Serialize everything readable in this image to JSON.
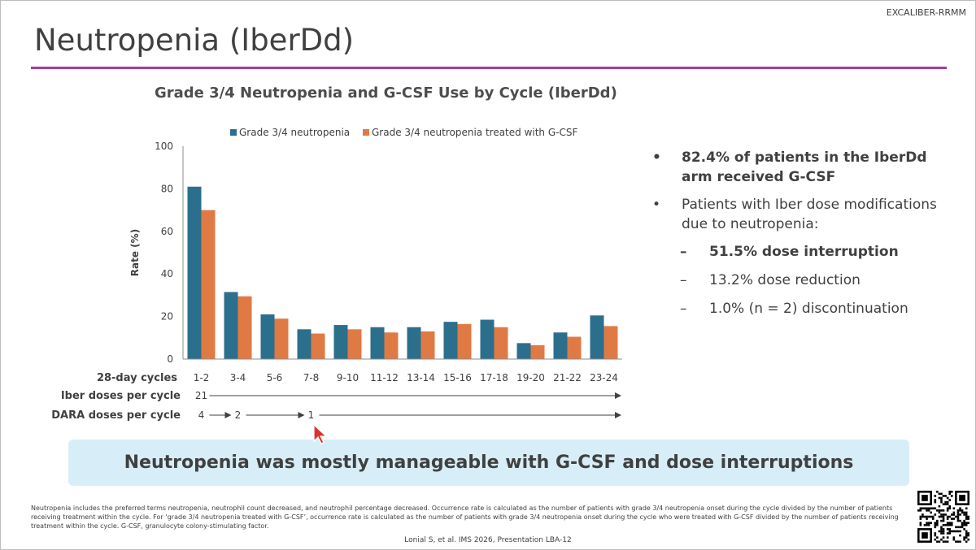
{
  "header": {
    "tag": "EXCALIBER-RRMM",
    "title": "Neutropenia (IberDd)"
  },
  "colors": {
    "accent_rule": "#a63c9a",
    "series1": "#2b6f8c",
    "series2": "#e07a45",
    "banner_bg": "#d7eef8"
  },
  "chart_data": {
    "type": "bar",
    "title": "Grade 3/4 Neutropenia and G-CSF Use by Cycle (IberDd)",
    "xlabel": "28-day cycles",
    "ylabel": "Rate (%)",
    "ylim": [
      0,
      100
    ],
    "yticks": [
      0,
      20,
      40,
      60,
      80,
      100
    ],
    "legend": "top",
    "categories": [
      "1-2",
      "3-4",
      "5-6",
      "7-8",
      "9-10",
      "11-12",
      "13-14",
      "15-16",
      "17-18",
      "19-20",
      "21-22",
      "23-24"
    ],
    "series": [
      {
        "name": "Grade 3/4 neutropenia",
        "values": [
          81,
          31.5,
          21,
          14,
          16,
          15,
          15,
          17.5,
          18.5,
          7.5,
          12.5,
          20.5
        ]
      },
      {
        "name": "Grade 3/4 neutropenia treated with G-CSF",
        "values": [
          70,
          29.5,
          19,
          12,
          14,
          12.5,
          13,
          16.5,
          15,
          6.5,
          10.5,
          15.5
        ]
      }
    ],
    "dose_rows": [
      {
        "label": "Iber doses per cycle",
        "values": [
          {
            "text": "21",
            "category": "1-2"
          }
        ]
      },
      {
        "label": "DARA doses per cycle",
        "values": [
          {
            "text": "4",
            "category": "1-2"
          },
          {
            "text": "2",
            "category": "3-4"
          },
          {
            "text": "1",
            "category": "7-8"
          }
        ]
      }
    ]
  },
  "bullets": {
    "b1": "82.4% of patients in the IberDd arm received G-CSF",
    "b2": "Patients with Iber dose modifications due to neutropenia:",
    "s1": "51.5% dose interruption",
    "s2": "13.2% dose reduction",
    "s3": "1.0% (n = 2) discontinuation"
  },
  "symbols": {
    "bullet": "•",
    "dash": "–"
  },
  "banner": "Neutropenia was mostly manageable with G-CSF and dose interruptions",
  "footnote": "Neutropenia includes the preferred terms neutropenia, neutrophil count decreased, and neutrophil percentage decreased. Occurrence rate is calculated as the number of patients with grade 3/4 neutropenia onset during the cycle divided by the number of patients receiving treatment within the cycle. For ‘grade 3/4 neutropenia treated with G-CSF’, occurrence rate is calculated as the number of patients with grade 3/4 neutropenia onset during the cycle who were treated with G-CSF divided by the number of patients receiving treatment within the cycle. G-CSF, granulocyte colony-stimulating factor.",
  "citation": "Lonial S, et al. IMS 2026, Presentation LBA-12",
  "icons": {
    "qr": "qr-code-icon",
    "cursor": "mouse-pointer-icon"
  }
}
